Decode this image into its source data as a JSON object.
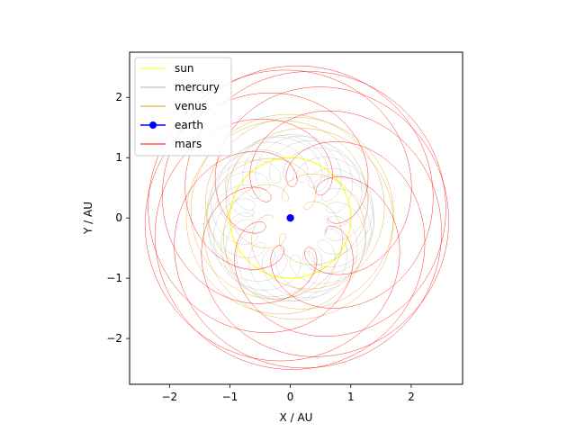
{
  "chart_data": {
    "type": "line",
    "title": "",
    "xlabel": "X / AU",
    "ylabel": "Y / AU",
    "xlim": [
      -2.66,
      2.85
    ],
    "ylim": [
      -2.76,
      2.75
    ],
    "xticks": [
      -2,
      -1,
      0,
      1,
      2
    ],
    "yticks": [
      -2,
      -1,
      0,
      1,
      2
    ],
    "xtick_labels": [
      "−2",
      "−1",
      "0",
      "1",
      "2"
    ],
    "ytick_labels": [
      "−2",
      "−1",
      "0",
      "1",
      "2"
    ],
    "grid": false,
    "legend_position": "top-left",
    "series": [
      {
        "name": "sun",
        "color": "#ffff00",
        "geocentric_orbit": {
          "semi_major_axis_au": 1.0,
          "years": 1.0,
          "center_offset": [
            0.0,
            0.0
          ]
        }
      },
      {
        "name": "mercury",
        "color": "#b0b0b0",
        "geocentric_orbit": {
          "semi_major_axis_au": 0.387,
          "years": 7.0,
          "center_offset": [
            0.0,
            0.0
          ]
        }
      },
      {
        "name": "venus",
        "color": "#e0a020",
        "geocentric_orbit": {
          "semi_major_axis_au": 0.723,
          "years": 6.0,
          "center_offset": [
            0.0,
            0.0
          ]
        }
      },
      {
        "name": "earth",
        "color": "#0000ff",
        "marker": "circle",
        "point": [
          0,
          0
        ]
      },
      {
        "name": "mars",
        "color": "#ff0000",
        "geocentric_orbit": {
          "semi_major_axis_au": 1.524,
          "years": 15.0,
          "center_offset": [
            0.1,
            0.0
          ]
        }
      }
    ]
  }
}
